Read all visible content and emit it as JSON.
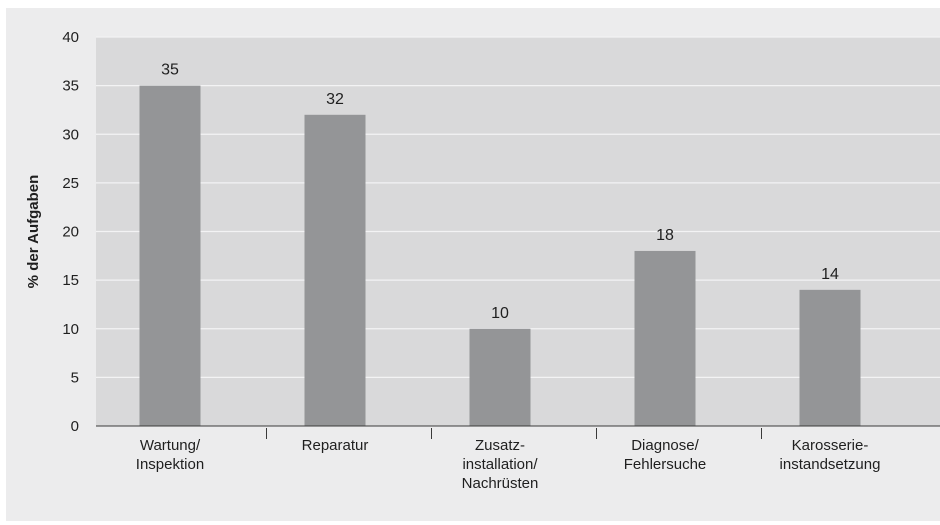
{
  "chart_data": {
    "type": "bar",
    "categories": [
      [
        "Wartung/",
        "Inspektion"
      ],
      [
        "Reparatur"
      ],
      [
        "Zusatz-",
        "installation/",
        "Nachrüsten"
      ],
      [
        "Diagnose/",
        "Fehlersuche"
      ],
      [
        "Karosserie-",
        "instandsetzung"
      ]
    ],
    "values": [
      35,
      32,
      10,
      18,
      14
    ],
    "data_labels": [
      "35",
      "32",
      "10",
      "18",
      "14"
    ],
    "ylabel": "% der Aufgaben",
    "xlabel": "",
    "title": "",
    "ylim": [
      0,
      40
    ],
    "yticks": [
      "0",
      "5",
      "10",
      "15",
      "20",
      "25",
      "30",
      "35",
      "40"
    ],
    "grid": true,
    "colors": {
      "bar": "#949597",
      "plot_bg": "#d9d9da",
      "frame_bg": "#ececed",
      "gridline": "#f3f3f4",
      "axis": "#3a3a3a"
    }
  }
}
